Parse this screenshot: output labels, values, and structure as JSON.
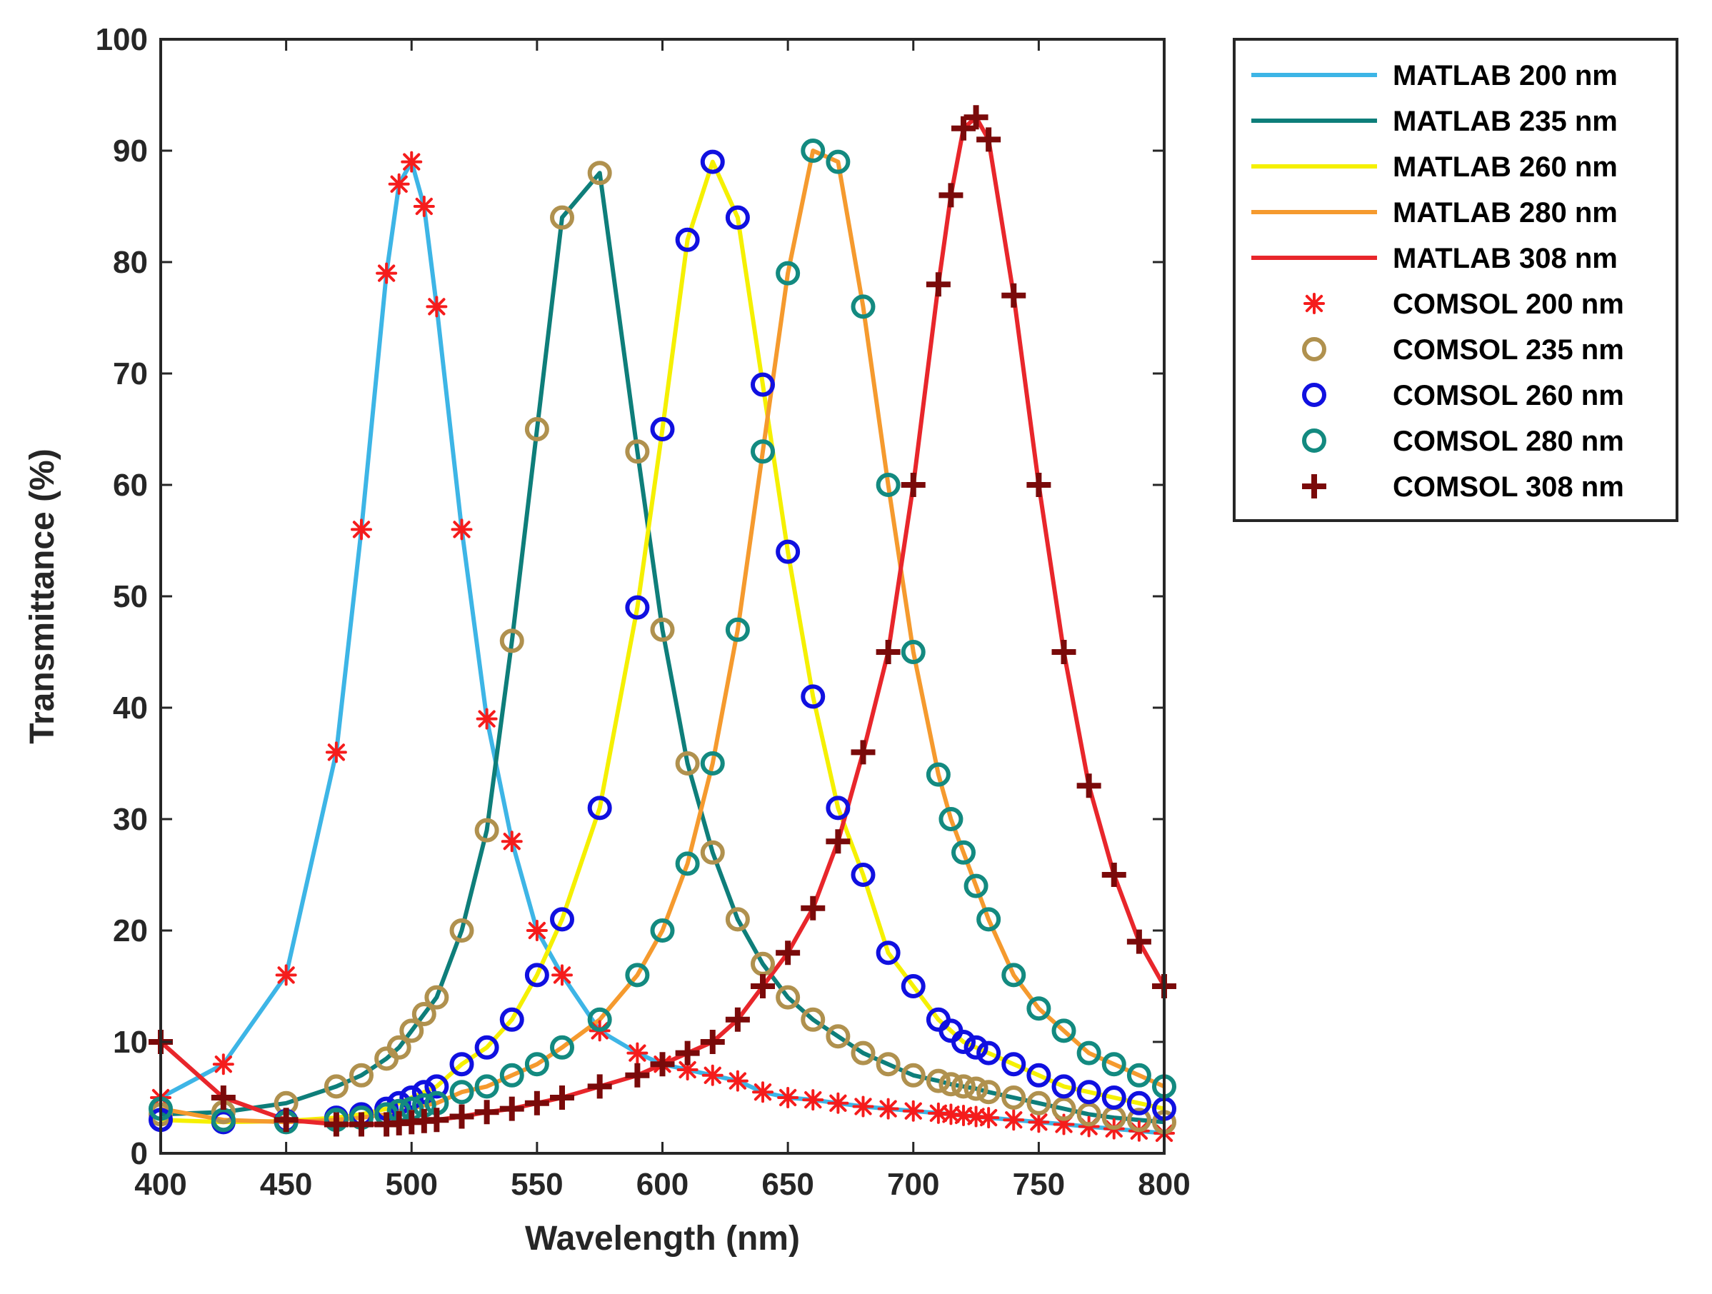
{
  "chart_data": {
    "type": "line",
    "title": "",
    "xlabel": "Wavelength (nm)",
    "ylabel": "Transmittance (%)",
    "xlim": [
      400,
      800
    ],
    "ylim": [
      0,
      100
    ],
    "xticks": [
      400,
      450,
      500,
      550,
      600,
      650,
      700,
      750,
      800
    ],
    "yticks": [
      0,
      10,
      20,
      30,
      40,
      50,
      60,
      70,
      80,
      90,
      100
    ],
    "grid": false,
    "legend_position": "outside-top-right",
    "x": [
      400,
      425,
      450,
      470,
      480,
      490,
      495,
      500,
      505,
      510,
      520,
      530,
      540,
      550,
      560,
      575,
      590,
      600,
      610,
      620,
      630,
      640,
      650,
      660,
      670,
      680,
      690,
      700,
      710,
      715,
      720,
      725,
      730,
      740,
      750,
      760,
      770,
      780,
      790,
      800
    ],
    "series": [
      {
        "name": "MATLAB 200 nm",
        "kind": "line",
        "color": "#3DB5E6",
        "values": [
          5,
          8,
          16,
          36,
          56,
          79,
          87,
          89,
          85,
          76,
          56,
          39,
          28,
          20,
          16,
          11,
          9,
          8,
          7.5,
          7,
          6.5,
          5.5,
          5,
          4.8,
          4.5,
          4.2,
          4,
          3.8,
          3.6,
          3.5,
          3.4,
          3.3,
          3.2,
          3,
          2.8,
          2.6,
          2.4,
          2.2,
          2,
          1.8
        ]
      },
      {
        "name": "MATLAB 235 nm",
        "kind": "line",
        "color": "#0E7E7A",
        "values": [
          3.5,
          3.7,
          4.5,
          6,
          7,
          8.5,
          9.5,
          11,
          12.5,
          14,
          20,
          29,
          46,
          65,
          84,
          88,
          63,
          47,
          35,
          27,
          21,
          17,
          14,
          12,
          10.5,
          9,
          8,
          7,
          6.5,
          6.2,
          6,
          5.8,
          5.5,
          5,
          4.5,
          4,
          3.5,
          3.2,
          3,
          2.8
        ]
      },
      {
        "name": "MATLAB 260 nm",
        "kind": "line",
        "color": "#F5F000",
        "values": [
          3,
          2.8,
          2.9,
          3.2,
          3.5,
          4,
          4.5,
          5,
          5.5,
          6,
          8,
          9.5,
          12,
          16,
          21,
          31,
          49,
          65,
          82,
          89,
          84,
          69,
          54,
          41,
          31,
          25,
          18,
          15,
          12,
          11,
          10,
          9.5,
          9,
          8,
          7,
          6,
          5.5,
          5,
          4.5,
          4
        ]
      },
      {
        "name": "MATLAB 280 nm",
        "kind": "line",
        "color": "#F59A2E",
        "values": [
          4,
          3,
          2.8,
          3,
          3.2,
          3.5,
          3.8,
          4,
          4.3,
          4.5,
          5.5,
          6,
          7,
          8,
          9.5,
          12,
          16,
          20,
          26,
          35,
          47,
          63,
          79,
          90,
          89,
          76,
          60,
          45,
          34,
          30,
          27,
          24,
          21,
          16,
          13,
          11,
          9,
          8,
          7,
          6
        ]
      },
      {
        "name": "MATLAB 308 nm",
        "kind": "line",
        "color": "#E8262B",
        "values": [
          10,
          5,
          3,
          2.6,
          2.6,
          2.6,
          2.7,
          2.8,
          2.9,
          3,
          3.3,
          3.7,
          4,
          4.5,
          5,
          6,
          7,
          8,
          9,
          10,
          12,
          15,
          18,
          22,
          28,
          36,
          45,
          60,
          78,
          86,
          92,
          93,
          91,
          77,
          60,
          45,
          33,
          25,
          19,
          15
        ]
      },
      {
        "name": "COMSOL 200 nm",
        "kind": "star",
        "color": "#F51C1C",
        "values": [
          5,
          8,
          16,
          36,
          56,
          79,
          87,
          89,
          85,
          76,
          56,
          39,
          28,
          20,
          16,
          11,
          9,
          8,
          7.5,
          7,
          6.5,
          5.5,
          5,
          4.8,
          4.5,
          4.2,
          4,
          3.8,
          3.6,
          3.5,
          3.4,
          3.3,
          3.2,
          3,
          2.8,
          2.6,
          2.4,
          2.2,
          2,
          1.8
        ]
      },
      {
        "name": "COMSOL 235 nm",
        "kind": "circle",
        "color": "#B0914E",
        "values": [
          3.5,
          3.7,
          4.5,
          6,
          7,
          8.5,
          9.5,
          11,
          12.5,
          14,
          20,
          29,
          46,
          65,
          84,
          88,
          63,
          47,
          35,
          27,
          21,
          17,
          14,
          12,
          10.5,
          9,
          8,
          7,
          6.5,
          6.2,
          6,
          5.8,
          5.5,
          5,
          4.5,
          4,
          3.5,
          3.2,
          3,
          2.8
        ]
      },
      {
        "name": "COMSOL 260 nm",
        "kind": "circle",
        "color": "#1010E0",
        "values": [
          3,
          2.8,
          2.9,
          3.2,
          3.5,
          4,
          4.5,
          5,
          5.5,
          6,
          8,
          9.5,
          12,
          16,
          21,
          31,
          49,
          65,
          82,
          89,
          84,
          69,
          54,
          41,
          31,
          25,
          18,
          15,
          12,
          11,
          10,
          9.5,
          9,
          8,
          7,
          6,
          5.5,
          5,
          4.5,
          4
        ]
      },
      {
        "name": "COMSOL 280 nm",
        "kind": "circle",
        "color": "#138A80",
        "values": [
          4,
          3,
          2.8,
          3,
          3.2,
          3.5,
          3.8,
          4,
          4.3,
          4.5,
          5.5,
          6,
          7,
          8,
          9.5,
          12,
          16,
          20,
          26,
          35,
          47,
          63,
          79,
          90,
          89,
          76,
          60,
          45,
          34,
          30,
          27,
          24,
          21,
          16,
          13,
          11,
          9,
          8,
          7,
          6
        ]
      },
      {
        "name": "COMSOL 308 nm",
        "kind": "plus",
        "color": "#7A0A0A",
        "values": [
          10,
          5,
          3,
          2.6,
          2.6,
          2.6,
          2.7,
          2.8,
          2.9,
          3,
          3.3,
          3.7,
          4,
          4.5,
          5,
          6,
          7,
          8,
          9,
          10,
          12,
          15,
          18,
          22,
          28,
          36,
          45,
          60,
          78,
          86,
          92,
          93,
          91,
          77,
          60,
          45,
          33,
          25,
          19,
          15
        ]
      }
    ]
  }
}
